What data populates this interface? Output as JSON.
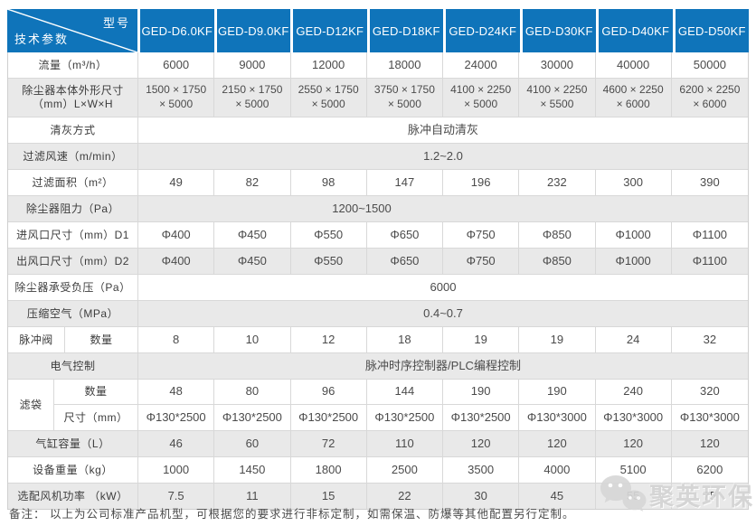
{
  "colors": {
    "header_blue": "#0f74ba",
    "row_shaded": "#e9e9e9",
    "grid_line": "#d8d8d8",
    "value_text": "#4b4b4b",
    "watermark_gray": "#d4d4d4"
  },
  "table": {
    "corner": {
      "top_right_label": "型号",
      "bottom_left_label": "技术参数"
    },
    "models": [
      "GED-D6.0KF",
      "GED-D9.0KF",
      "GED-D12KF",
      "GED-D18KF",
      "GED-D24KF",
      "GED-D30KF",
      "GED-D40KF",
      "GED-D50KF"
    ],
    "rows": [
      {
        "kind": "values",
        "shaded": false,
        "label": "流量（m³/h）",
        "values": [
          "6000",
          "9000",
          "12000",
          "18000",
          "24000",
          "30000",
          "40000",
          "50000"
        ]
      },
      {
        "kind": "dims",
        "shaded": true,
        "label": "除尘器本体外形尺寸\n（mm）L×W×H",
        "values": [
          [
            "1500 × 1750",
            "× 5000"
          ],
          [
            "2150 × 1750",
            "× 5000"
          ],
          [
            "2550 × 1750",
            "× 5000"
          ],
          [
            "3750 × 1750",
            "× 5000"
          ],
          [
            "4100 × 2250",
            "× 5000"
          ],
          [
            "4100 × 2250",
            "× 5500"
          ],
          [
            "4600 × 2250",
            "× 6000"
          ],
          [
            "6200 × 2250",
            "× 6000"
          ]
        ]
      },
      {
        "kind": "span",
        "shaded": false,
        "label": "清灰方式",
        "value": "脉冲自动清灰"
      },
      {
        "kind": "span",
        "shaded": true,
        "label": "过滤风速（m/min）",
        "value": "1.2~2.0"
      },
      {
        "kind": "values",
        "shaded": false,
        "label": "过滤面积（m²）",
        "values": [
          "49",
          "82",
          "98",
          "147",
          "196",
          "232",
          "300",
          "390"
        ]
      },
      {
        "kind": "span",
        "shaded": true,
        "offset": true,
        "label": "除尘器阻力（Pa）",
        "value": "1200~1500"
      },
      {
        "kind": "values",
        "shaded": false,
        "label": "进风口尺寸（mm）D1",
        "values": [
          "Φ400",
          "Φ450",
          "Φ550",
          "Φ650",
          "Φ750",
          "Φ850",
          "Φ1000",
          "Φ1100"
        ]
      },
      {
        "kind": "values",
        "shaded": true,
        "label": "出风口尺寸（mm）D2",
        "values": [
          "Φ400",
          "Φ450",
          "Φ550",
          "Φ650",
          "Φ750",
          "Φ850",
          "Φ1000",
          "Φ1100"
        ]
      },
      {
        "kind": "span",
        "shaded": false,
        "label": "除尘器承受负压（Pa）",
        "value": "6000"
      },
      {
        "kind": "span",
        "shaded": true,
        "label": "压缩空气（MPa）",
        "value": "0.4~0.7"
      },
      {
        "kind": "split",
        "shaded": false,
        "label1": "脉冲阀",
        "label2": "数量",
        "values": [
          "8",
          "10",
          "12",
          "18",
          "19",
          "19",
          "24",
          "32"
        ]
      },
      {
        "kind": "span",
        "shaded": true,
        "label": "电气控制",
        "value": "脉冲时序控制器/PLC编程控制"
      },
      {
        "kind": "group",
        "shaded": false,
        "label": "滤袋",
        "subrows": [
          {
            "label": "数量",
            "values": [
              "48",
              "80",
              "96",
              "144",
              "190",
              "190",
              "240",
              "320"
            ]
          },
          {
            "label": "尺寸（mm）",
            "values": [
              "Φ130*2500",
              "Φ130*2500",
              "Φ130*2500",
              "Φ130*2500",
              "Φ130*2500",
              "Φ130*3000",
              "Φ130*3000",
              "Φ130*3000"
            ]
          }
        ]
      },
      {
        "kind": "values",
        "shaded": true,
        "label": "气缸容量（L）",
        "values": [
          "46",
          "60",
          "72",
          "110",
          "120",
          "120",
          "120",
          "120"
        ]
      },
      {
        "kind": "values",
        "shaded": false,
        "label": "设备重量（kg）",
        "values": [
          "1000",
          "1450",
          "1800",
          "2500",
          "3500",
          "4000",
          "5100",
          "6200"
        ]
      },
      {
        "kind": "values",
        "shaded": true,
        "label": "选配风机功率 （kW）",
        "values": [
          "7.5",
          "11",
          "15",
          "22",
          "30",
          "45",
          "55",
          "75"
        ]
      }
    ]
  },
  "remark": {
    "text": "备注： 以上为公司标准产品机型，可根据您的要求进行非标定制，如需保温、防爆等其他配置另行定制。"
  },
  "watermark": {
    "icon": "wechat-bubbles-icon",
    "text": "聚英环保"
  }
}
